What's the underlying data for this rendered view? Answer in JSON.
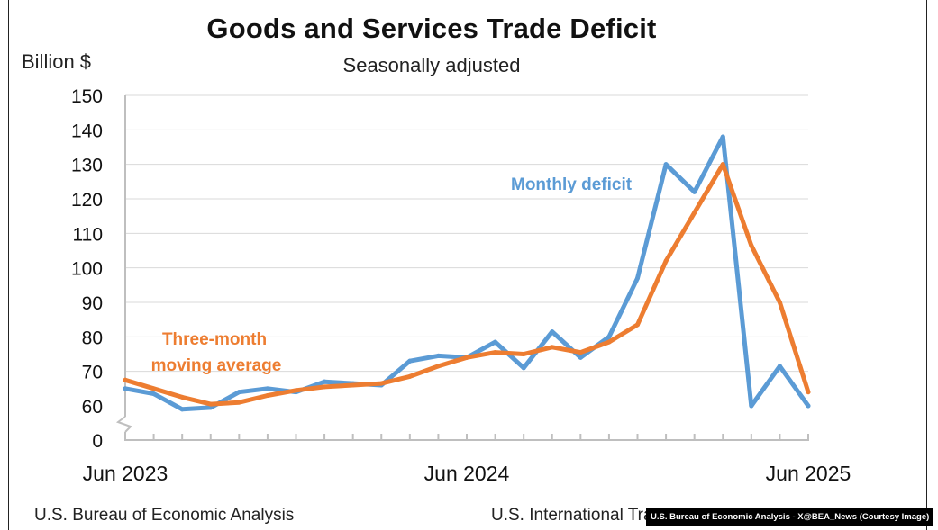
{
  "chart_data": {
    "type": "line",
    "title": "Goods and Services Trade Deficit",
    "subtitle": "Seasonally adjusted",
    "ylabel": "Billion $",
    "xlabel": "",
    "ylim": [
      0,
      150
    ],
    "axis_break": "between 0 and 60",
    "y_ticks": [
      "0",
      "60",
      "70",
      "80",
      "90",
      "100",
      "110",
      "120",
      "130",
      "140",
      "150"
    ],
    "x_tick_labels": [
      "Jun 2023",
      "Jun 2024",
      "Jun 2025"
    ],
    "x": [
      "2023-06",
      "2023-07",
      "2023-08",
      "2023-09",
      "2023-10",
      "2023-11",
      "2023-12",
      "2024-01",
      "2024-02",
      "2024-03",
      "2024-04",
      "2024-05",
      "2024-06",
      "2024-07",
      "2024-08",
      "2024-09",
      "2024-10",
      "2024-11",
      "2024-12",
      "2025-01",
      "2025-02",
      "2025-03",
      "2025-04",
      "2025-05",
      "2025-06"
    ],
    "grid": "horizontal",
    "series": [
      {
        "name": "Monthly deficit",
        "color": "#5b9bd5",
        "values": [
          65.0,
          63.5,
          59.0,
          59.5,
          64.0,
          65.0,
          64.0,
          67.0,
          66.5,
          66.0,
          73.0,
          74.5,
          74.0,
          78.5,
          71.0,
          81.5,
          74.0,
          80.0,
          97.0,
          130.0,
          122.0,
          138.0,
          60.0,
          71.5,
          60.0
        ]
      },
      {
        "name": "Three-month moving average",
        "label_lines": [
          "Three-month",
          "moving average"
        ],
        "color": "#ed7d31",
        "values": [
          67.5,
          65.0,
          62.5,
          60.5,
          61.0,
          63.0,
          64.5,
          65.5,
          66.0,
          66.5,
          68.5,
          71.5,
          74.0,
          75.5,
          75.0,
          77.0,
          75.5,
          78.5,
          83.5,
          102.0,
          116.0,
          130.0,
          106.5,
          90.0,
          64.0
        ]
      }
    ]
  },
  "footer": {
    "source_left": "U.S. Bureau of Economic Analysis",
    "source_right": "U.S. International Trade in Goods and Services",
    "credit": "U.S. Bureau of Economic Analysis - X@BEA_News (Courtesy Image)"
  }
}
